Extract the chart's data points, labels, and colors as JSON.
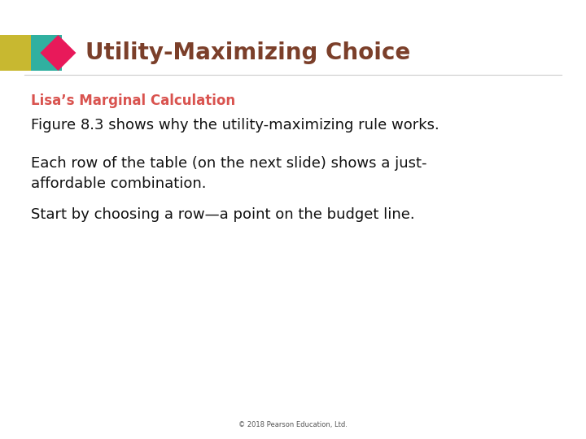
{
  "title": "Utility-Maximizing Choice",
  "title_color": "#7B3F2A",
  "subtitle": "Lisa’s Marginal Calculation",
  "subtitle_color": "#D9534F",
  "body_lines": [
    "Figure 8.3 shows why the utility-maximizing rule works.",
    "Each row of the table (on the next slide) shows a just-\naffordable combination.",
    "Start by choosing a row—a point on the budget line."
  ],
  "body_color": "#111111",
  "footer": "© 2018 Pearson Education, Ltd.",
  "footer_color": "#555555",
  "background_color": "#ffffff",
  "icon_rect_color1": "#c8b830",
  "icon_rect_color2": "#30b0a0",
  "icon_diamond_color": "#e8195a",
  "title_fontsize": 20,
  "subtitle_fontsize": 12,
  "body_fontsize": 13,
  "footer_fontsize": 6
}
